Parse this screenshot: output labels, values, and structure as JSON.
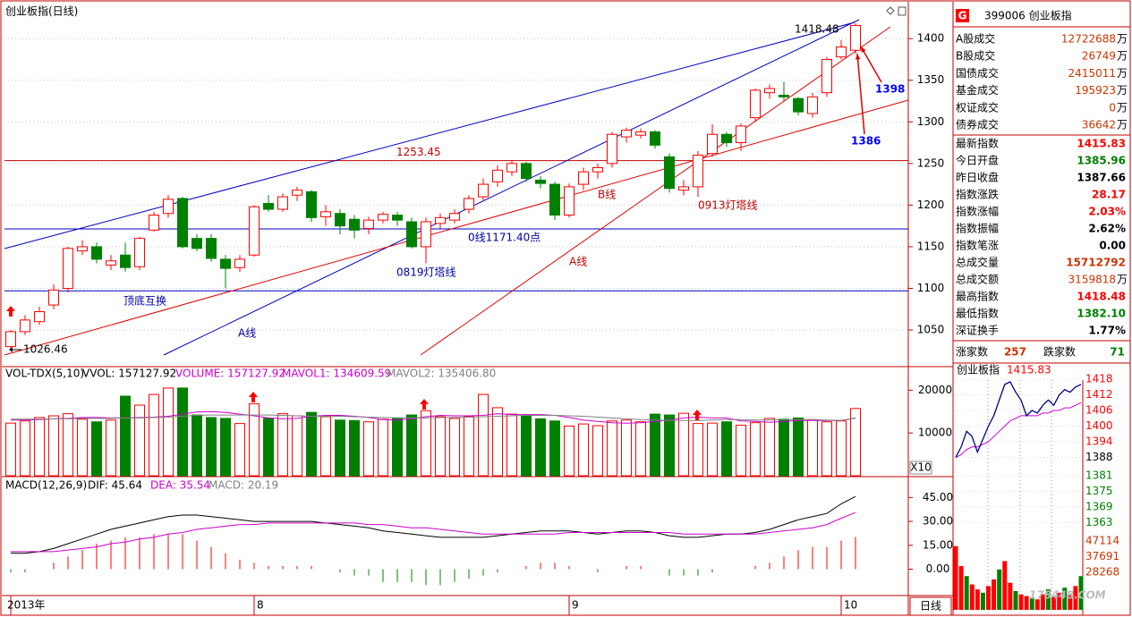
{
  "chart_data": [
    {
      "type": "candlestick",
      "title": "创业板指(日线)",
      "categories": [
        "2013年",
        null,
        null,
        null,
        null,
        null,
        null,
        null,
        null,
        null,
        null,
        null,
        null,
        null,
        null,
        null,
        null,
        "8",
        null,
        null,
        null,
        null,
        null,
        null,
        null,
        null,
        null,
        null,
        null,
        null,
        null,
        null,
        null,
        null,
        null,
        null,
        null,
        null,
        null,
        "9",
        null,
        null,
        null,
        null,
        null,
        null,
        null,
        null,
        null,
        null,
        null,
        null,
        null,
        null,
        null,
        null,
        null,
        null,
        "10",
        null
      ],
      "open": [
        1030,
        1048,
        1060,
        1080,
        1100,
        1145,
        1150,
        1128,
        1140,
        1126,
        1170,
        1190,
        1208,
        1160,
        1160,
        1135,
        1125,
        1140,
        1202,
        1195,
        1212,
        1216,
        1186,
        1190,
        1183,
        1172,
        1182,
        1188,
        1180,
        1150,
        1178,
        1182,
        1195,
        1210,
        1228,
        1240,
        1250,
        1230,
        1225,
        1188,
        1225,
        1240,
        1250,
        1282,
        1284,
        1288,
        1258,
        1218,
        1222,
        1262,
        1285,
        1275,
        1305,
        1335,
        1332,
        1328,
        1310,
        1335,
        1378,
        1385.96
      ],
      "high": [
        1050,
        1068,
        1078,
        1105,
        1150,
        1158,
        1155,
        1140,
        1155,
        1162,
        1192,
        1212,
        1210,
        1165,
        1165,
        1140,
        1140,
        1200,
        1212,
        1214,
        1222,
        1218,
        1200,
        1195,
        1188,
        1186,
        1192,
        1192,
        1185,
        1185,
        1190,
        1195,
        1212,
        1232,
        1248,
        1253,
        1252,
        1235,
        1228,
        1226,
        1245,
        1250,
        1288,
        1293,
        1292,
        1290,
        1262,
        1230,
        1265,
        1297,
        1288,
        1298,
        1340,
        1345,
        1348,
        1330,
        1335,
        1378,
        1398,
        1418.48
      ],
      "low": [
        1026.46,
        1044,
        1056,
        1075,
        1095,
        1140,
        1130,
        1122,
        1120,
        1122,
        1168,
        1185,
        1148,
        1145,
        1132,
        1100,
        1120,
        1138,
        1192,
        1192,
        1205,
        1180,
        1175,
        1165,
        1160,
        1165,
        1178,
        1175,
        1148,
        1130,
        1172,
        1178,
        1190,
        1205,
        1222,
        1235,
        1228,
        1220,
        1182,
        1185,
        1218,
        1232,
        1245,
        1275,
        1280,
        1268,
        1215,
        1212,
        1210,
        1258,
        1270,
        1265,
        1300,
        1328,
        1325,
        1308,
        1305,
        1330,
        1375,
        1382.1
      ],
      "close": [
        1048,
        1062,
        1072,
        1098,
        1148,
        1150,
        1135,
        1133,
        1125,
        1160,
        1188,
        1207,
        1150,
        1148,
        1136,
        1124,
        1135,
        1198,
        1195,
        1210,
        1218,
        1185,
        1192,
        1175,
        1170,
        1182,
        1189,
        1182,
        1150,
        1180,
        1185,
        1190,
        1208,
        1225,
        1242,
        1250,
        1232,
        1226,
        1188,
        1222,
        1240,
        1245,
        1285,
        1290,
        1288,
        1272,
        1220,
        1222,
        1260,
        1285,
        1275,
        1295,
        1338,
        1340,
        1330,
        1312,
        1330,
        1375,
        1390,
        1415.83
      ],
      "up_color": "#ff0000",
      "down_color": "#008000",
      "ylim": [
        1006,
        1441
      ],
      "yticks": [
        1050,
        1100,
        1150,
        1200,
        1250,
        1300,
        1350,
        1400
      ],
      "grid": true,
      "levels": [
        {
          "value": 1253.45,
          "color": "#c00000"
        },
        {
          "value": 1171.4,
          "color": "#0000c0"
        },
        {
          "value": 1097,
          "color": "#0000c0"
        }
      ],
      "annotations": [
        {
          "text": "顶底互换",
          "color": "#0000a0"
        },
        {
          "text": "A线",
          "color": "#0000a0"
        },
        {
          "text": "0819灯塔线",
          "color": "#0000a0"
        },
        {
          "text": "0线1171.40点",
          "color": "#0000a0"
        },
        {
          "text": "B线",
          "color": "#c00000"
        },
        {
          "text": "0913灯塔线",
          "color": "#c00000"
        },
        {
          "text": "A线",
          "color": "#c00000"
        },
        {
          "text": "1398",
          "color": "#0000ff"
        },
        {
          "text": "1386",
          "color": "#0000ff"
        }
      ]
    },
    {
      "type": "bar",
      "header": [
        {
          "text": "VOL-TDX(5,10)",
          "color": "#000000"
        },
        {
          "text": "VVOL: 157127.92",
          "color": "#000000"
        },
        {
          "text": "VOLUME: 157127.92",
          "color": "#cc00cc"
        },
        {
          "text": "MAVOL1: 134609.59",
          "color": "#cc00cc"
        },
        {
          "text": "MAVOL2: 135406.80",
          "color": "#808080"
        }
      ],
      "values": [
        12300,
        12800,
        13600,
        14000,
        14500,
        13200,
        12600,
        13000,
        18600,
        16500,
        19000,
        20500,
        20500,
        14200,
        13600,
        13400,
        12200,
        16800,
        13400,
        14500,
        14000,
        14800,
        13800,
        13000,
        12900,
        12600,
        13200,
        13500,
        14200,
        15200,
        13800,
        13400,
        13900,
        19000,
        15900,
        14400,
        14000,
        13300,
        12800,
        11600,
        12100,
        11700,
        12800,
        13000,
        12600,
        14400,
        14200,
        14600,
        12200,
        12300,
        12600,
        11800,
        12400,
        13400,
        13200,
        13500,
        13100,
        12600,
        12800,
        15713
      ],
      "mavol1": [
        13000,
        13000,
        13100,
        13300,
        13400,
        13600,
        13600,
        13500,
        13500,
        13600,
        13700,
        13900,
        14400,
        14900,
        15000,
        14800,
        14400,
        14000,
        13500,
        13300,
        13400,
        13900,
        14100,
        14100,
        13900,
        13600,
        13100,
        13000,
        13300,
        13800,
        14100,
        14000,
        14000,
        14100,
        14500,
        14300,
        14300,
        14300,
        14100,
        13600,
        13000,
        12700,
        12400,
        12300,
        12400,
        12700,
        13000,
        13500,
        13700,
        13500,
        13500,
        12800,
        12700,
        12500,
        12700,
        12900,
        12900,
        12900,
        12900,
        13461
      ],
      "mavol2": [
        13200,
        13200,
        13200,
        13300,
        13300,
        13400,
        13400,
        13400,
        13500,
        13500,
        13600,
        13700,
        13900,
        14100,
        14200,
        14200,
        14200,
        14200,
        14200,
        14100,
        14000,
        13900,
        13900,
        13900,
        13800,
        13700,
        13600,
        13500,
        13500,
        13500,
        13600,
        13600,
        13700,
        13800,
        13900,
        14000,
        14100,
        14100,
        14100,
        14000,
        13900,
        13700,
        13500,
        13300,
        13100,
        13000,
        12900,
        12900,
        12900,
        13000,
        13100,
        13100,
        13000,
        13000,
        13100,
        13100,
        13100,
        13000,
        12900,
        13541
      ],
      "mavol1_color": "#cc00cc",
      "mavol2_color": "#808080",
      "ylim": [
        0,
        25500
      ],
      "yticks": [
        10000,
        20000
      ],
      "scale_label": "X10"
    },
    {
      "type": "macd",
      "header": [
        {
          "text": "MACD(12,26,9)",
          "color": "#000000"
        },
        {
          "text": "DIF: 45.64",
          "color": "#000000"
        },
        {
          "text": "DEA: 35.54",
          "color": "#cc00cc"
        },
        {
          "text": "MACD: 20.19",
          "color": "#808080"
        }
      ],
      "dif": [
        10,
        10,
        11,
        13,
        16,
        19,
        22,
        25,
        27,
        29,
        31,
        33,
        34,
        34,
        33,
        32,
        31,
        30,
        30,
        30,
        30,
        30,
        29,
        28,
        27,
        26,
        24,
        23,
        22,
        21,
        20,
        20,
        20,
        20,
        21,
        22,
        23,
        24,
        24,
        24,
        23,
        22,
        23,
        24,
        24,
        23,
        21,
        20,
        20,
        21,
        22,
        22,
        23,
        25,
        28,
        31,
        33,
        35,
        41,
        45.64
      ],
      "dea": [
        11,
        11,
        11,
        11,
        12,
        13,
        14,
        16,
        17,
        19,
        20,
        22,
        23,
        25,
        26,
        27,
        28,
        28,
        29,
        29,
        29,
        29,
        29,
        29,
        29,
        28,
        28,
        27,
        26,
        26,
        25,
        24,
        23,
        22,
        22,
        22,
        22,
        22,
        22,
        23,
        23,
        23,
        23,
        23,
        23,
        23,
        23,
        22,
        22,
        22,
        22,
        22,
        22,
        23,
        24,
        25,
        26,
        28,
        32,
        35.54
      ],
      "macd": [
        -2,
        -2,
        0,
        4,
        8,
        12,
        16,
        18,
        20,
        20,
        22,
        22,
        22,
        18,
        14,
        10,
        6,
        4,
        2,
        2,
        2,
        2,
        0,
        -2,
        -4,
        -4,
        -8,
        -8,
        -8,
        -10,
        -10,
        -8,
        -6,
        -4,
        -2,
        0,
        2,
        4,
        4,
        2,
        0,
        -2,
        0,
        2,
        2,
        0,
        -4,
        -4,
        -4,
        -2,
        0,
        0,
        2,
        4,
        8,
        12,
        14,
        14,
        18,
        20.19
      ],
      "dif_color": "#000000",
      "dea_color": "#cc00cc",
      "ylim": [
        -16,
        57
      ],
      "yticks": [
        {
          "value": 0,
          "label": "0.00"
        },
        {
          "value": 15,
          "label": "15.00"
        },
        {
          "value": 30,
          "label": "30.00"
        },
        {
          "value": 45,
          "label": "45.00"
        }
      ]
    },
    {
      "type": "intraday",
      "title": "创业板指",
      "last": 1415.83,
      "price": [
        1388,
        1392,
        1398,
        1396,
        1390,
        1395,
        1400,
        1404,
        1410,
        1416,
        1417,
        1413,
        1410,
        1404,
        1406,
        1405,
        1408,
        1410,
        1408,
        1412,
        1414,
        1413,
        1415,
        1416
      ],
      "average": [
        1388,
        1389,
        1391,
        1392,
        1392,
        1393,
        1394,
        1396,
        1398,
        1400,
        1402,
        1403,
        1404,
        1404,
        1404,
        1404,
        1405,
        1405,
        1406,
        1406,
        1407,
        1407,
        1408,
        1409
      ],
      "volume": [
        44000,
        32000,
        26000,
        21000,
        18000,
        16000,
        20000,
        24000,
        30000,
        35000,
        22000,
        17000,
        15000,
        14000,
        13000,
        12000,
        15000,
        18000,
        14000,
        16000,
        19000,
        15000,
        20000,
        26000
      ],
      "price_color": "#000080",
      "average_color": "#cc00cc",
      "ylim": [
        1357.6,
        1419.4
      ],
      "yticks": [
        1418,
        1412,
        1406,
        1400,
        1394,
        1388,
        1381,
        1375,
        1369,
        1363
      ],
      "ytick_colors": [
        "#ff0000",
        "#ff0000",
        "#ff0000",
        "#ff0000",
        "#ff0000",
        "#000000",
        "#008000",
        "#008000",
        "#008000",
        "#008000"
      ],
      "y2lim": [
        5700,
        48700
      ],
      "y2ticks": [
        47114,
        37691,
        28268
      ]
    }
  ],
  "quote": {
    "badge": "G",
    "code": "399006 创业板指",
    "rows": [
      {
        "label": "A股成交",
        "value": "12722688",
        "unit": "万",
        "color": "#cc3300"
      },
      {
        "label": "B股成交",
        "value": "26749",
        "unit": "万",
        "color": "#cc3300"
      },
      {
        "label": "国债成交",
        "value": "2415011",
        "unit": "万",
        "color": "#cc3300"
      },
      {
        "label": "基金成交",
        "value": "195923",
        "unit": "万",
        "color": "#cc3300"
      },
      {
        "label": "权证成交",
        "value": "0",
        "unit": "万",
        "color": "#cc3300"
      },
      {
        "label": "债券成交",
        "value": "36642",
        "unit": "万",
        "color": "#cc3300"
      },
      {
        "label": "最新指数",
        "value": "1415.83",
        "color": "#ff0000"
      },
      {
        "label": "今日开盘",
        "value": "1385.96",
        "color": "#008000"
      },
      {
        "label": "昨日收盘",
        "value": "1387.66",
        "color": "#000000"
      },
      {
        "label": "指数涨跌",
        "value": "28.17",
        "color": "#ff0000"
      },
      {
        "label": "指数涨幅",
        "value": "2.03%",
        "color": "#ff0000"
      },
      {
        "label": "指数振幅",
        "value": "2.62%",
        "color": "#000000"
      },
      {
        "label": "指数笔涨",
        "value": "0.00",
        "color": "#000000"
      },
      {
        "label": "总成交量",
        "value": "15712792",
        "color": "#cc3300"
      },
      {
        "label": "总成交额",
        "value": "3159818",
        "unit": "万",
        "color": "#cc3300"
      },
      {
        "label": "最高指数",
        "value": "1418.48",
        "color": "#ff0000"
      },
      {
        "label": "最低指数",
        "value": "1382.10",
        "color": "#008000"
      },
      {
        "label": "深证换手",
        "value": "1.77%",
        "color": "#000000"
      }
    ],
    "advance_label": "涨家数",
    "advance": "257",
    "decline_label": "跌家数",
    "decline": "71"
  },
  "ui": {
    "period": "日线",
    "watermark": "178448.COM"
  }
}
